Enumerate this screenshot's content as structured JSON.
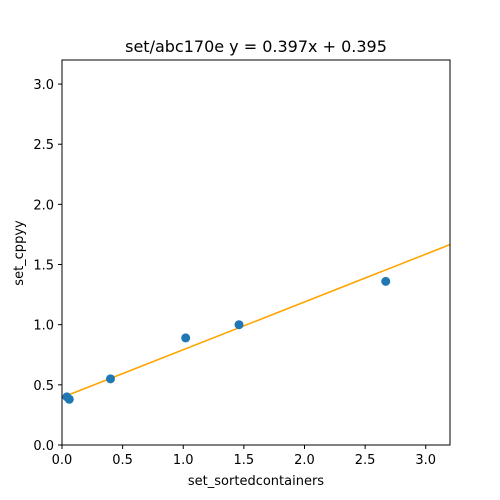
{
  "chart_data": {
    "type": "scatter",
    "title": "set/abc170e y = 0.397x + 0.395",
    "xlabel": "set_sortedcontainers",
    "ylabel": "set_cppyy",
    "xlim": [
      0,
      3.2
    ],
    "ylim": [
      0,
      3.2
    ],
    "xticks": [
      "0.0",
      "0.5",
      "1.0",
      "1.5",
      "2.0",
      "2.5",
      "3.0"
    ],
    "yticks": [
      "0.0",
      "0.5",
      "1.0",
      "1.5",
      "2.0",
      "2.5",
      "3.0"
    ],
    "grid": false,
    "series": [
      {
        "type": "scatter",
        "color": "#1f77b4",
        "points": [
          {
            "x": 0.04,
            "y": 0.4
          },
          {
            "x": 0.06,
            "y": 0.38
          },
          {
            "x": 0.4,
            "y": 0.55
          },
          {
            "x": 1.02,
            "y": 0.89
          },
          {
            "x": 1.46,
            "y": 1.0
          },
          {
            "x": 2.67,
            "y": 1.36
          }
        ]
      },
      {
        "type": "line",
        "color": "#ffa500",
        "slope": 0.397,
        "intercept": 0.395
      }
    ]
  }
}
